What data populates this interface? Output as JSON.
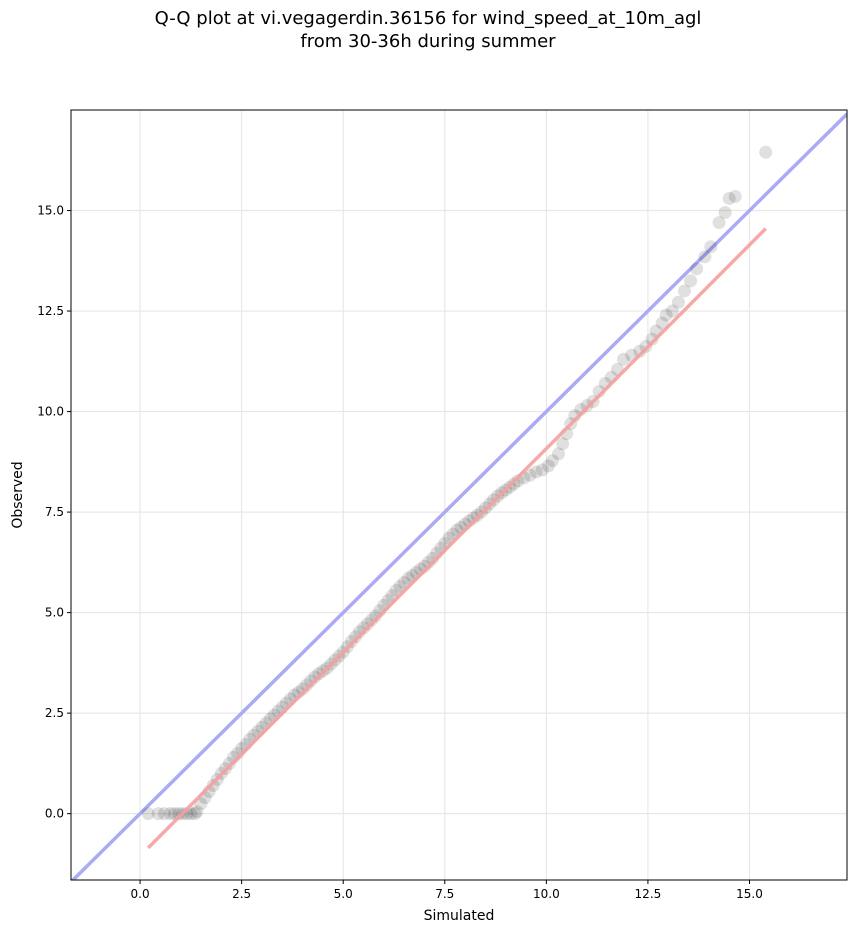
{
  "chart_data": {
    "type": "scatter",
    "title_line1": "Q-Q plot at vi.vegagerdin.36156 for wind_speed_at_10m_agl",
    "title_line2": "from 30-36h during summer",
    "xlabel": "Simulated",
    "ylabel": "Observed",
    "xlim": [
      -1.7,
      17.4
    ],
    "ylim": [
      -1.65,
      17.5
    ],
    "xticks": [
      0.0,
      2.5,
      5.0,
      7.5,
      10.0,
      12.5,
      15.0
    ],
    "yticks": [
      0.0,
      2.5,
      5.0,
      7.5,
      10.0,
      12.5,
      15.0
    ],
    "xtick_labels": [
      "0.0",
      "2.5",
      "5.0",
      "7.5",
      "10.0",
      "12.5",
      "15.0"
    ],
    "ytick_labels": [
      "0.0",
      "2.5",
      "5.0",
      "7.5",
      "10.0",
      "12.5",
      "15.0"
    ],
    "grid": true,
    "identity_line": {
      "color": "#aaaaf5",
      "x": [
        -1.7,
        17.4
      ],
      "y": [
        -1.7,
        17.4
      ]
    },
    "fit_line": {
      "color": "#f5a0a0",
      "x": [
        0.2,
        15.4
      ],
      "y": [
        -0.85,
        14.55
      ]
    },
    "point_color": "#000000",
    "points": [
      [
        0.2,
        0.0
      ],
      [
        0.45,
        0.0
      ],
      [
        0.6,
        0.0
      ],
      [
        0.75,
        0.0
      ],
      [
        0.85,
        0.0
      ],
      [
        0.95,
        0.0
      ],
      [
        1.05,
        0.0
      ],
      [
        1.15,
        0.0
      ],
      [
        1.25,
        0.0
      ],
      [
        1.35,
        0.0
      ],
      [
        1.4,
        0.05
      ],
      [
        1.5,
        0.25
      ],
      [
        1.6,
        0.4
      ],
      [
        1.7,
        0.55
      ],
      [
        1.8,
        0.7
      ],
      [
        1.9,
        0.85
      ],
      [
        2.0,
        1.0
      ],
      [
        2.1,
        1.12
      ],
      [
        2.2,
        1.25
      ],
      [
        2.3,
        1.4
      ],
      [
        2.4,
        1.5
      ],
      [
        2.5,
        1.62
      ],
      [
        2.6,
        1.72
      ],
      [
        2.7,
        1.85
      ],
      [
        2.8,
        1.95
      ],
      [
        2.9,
        2.05
      ],
      [
        3.0,
        2.15
      ],
      [
        3.1,
        2.25
      ],
      [
        3.2,
        2.35
      ],
      [
        3.3,
        2.45
      ],
      [
        3.4,
        2.55
      ],
      [
        3.5,
        2.65
      ],
      [
        3.6,
        2.75
      ],
      [
        3.7,
        2.85
      ],
      [
        3.8,
        2.95
      ],
      [
        3.9,
        3.02
      ],
      [
        4.0,
        3.1
      ],
      [
        4.1,
        3.2
      ],
      [
        4.2,
        3.3
      ],
      [
        4.3,
        3.4
      ],
      [
        4.4,
        3.48
      ],
      [
        4.5,
        3.55
      ],
      [
        4.6,
        3.62
      ],
      [
        4.7,
        3.72
      ],
      [
        4.8,
        3.82
      ],
      [
        4.9,
        3.92
      ],
      [
        5.0,
        4.02
      ],
      [
        5.1,
        4.15
      ],
      [
        5.2,
        4.28
      ],
      [
        5.3,
        4.4
      ],
      [
        5.4,
        4.52
      ],
      [
        5.5,
        4.62
      ],
      [
        5.6,
        4.72
      ],
      [
        5.7,
        4.82
      ],
      [
        5.8,
        4.92
      ],
      [
        5.9,
        5.05
      ],
      [
        6.0,
        5.18
      ],
      [
        6.1,
        5.3
      ],
      [
        6.2,
        5.42
      ],
      [
        6.3,
        5.55
      ],
      [
        6.4,
        5.65
      ],
      [
        6.5,
        5.75
      ],
      [
        6.6,
        5.85
      ],
      [
        6.7,
        5.92
      ],
      [
        6.8,
        6.0
      ],
      [
        6.9,
        6.08
      ],
      [
        7.0,
        6.15
      ],
      [
        7.1,
        6.25
      ],
      [
        7.2,
        6.35
      ],
      [
        7.3,
        6.48
      ],
      [
        7.4,
        6.6
      ],
      [
        7.5,
        6.72
      ],
      [
        7.6,
        6.85
      ],
      [
        7.7,
        6.95
      ],
      [
        7.8,
        7.05
      ],
      [
        7.9,
        7.12
      ],
      [
        8.0,
        7.2
      ],
      [
        8.1,
        7.28
      ],
      [
        8.2,
        7.35
      ],
      [
        8.3,
        7.42
      ],
      [
        8.4,
        7.5
      ],
      [
        8.5,
        7.6
      ],
      [
        8.6,
        7.7
      ],
      [
        8.7,
        7.8
      ],
      [
        8.8,
        7.9
      ],
      [
        8.9,
        7.98
      ],
      [
        9.0,
        8.05
      ],
      [
        9.1,
        8.12
      ],
      [
        9.2,
        8.2
      ],
      [
        9.3,
        8.28
      ],
      [
        9.45,
        8.35
      ],
      [
        9.6,
        8.42
      ],
      [
        9.75,
        8.5
      ],
      [
        9.9,
        8.55
      ],
      [
        10.05,
        8.65
      ],
      [
        10.15,
        8.78
      ],
      [
        10.3,
        8.95
      ],
      [
        10.4,
        9.2
      ],
      [
        10.5,
        9.45
      ],
      [
        10.6,
        9.7
      ],
      [
        10.7,
        9.9
      ],
      [
        10.85,
        10.05
      ],
      [
        11.0,
        10.15
      ],
      [
        11.15,
        10.25
      ],
      [
        11.3,
        10.5
      ],
      [
        11.45,
        10.7
      ],
      [
        11.6,
        10.85
      ],
      [
        11.75,
        11.05
      ],
      [
        11.9,
        11.3
      ],
      [
        12.1,
        11.4
      ],
      [
        12.3,
        11.5
      ],
      [
        12.45,
        11.62
      ],
      [
        12.6,
        11.8
      ],
      [
        12.7,
        12.0
      ],
      [
        12.85,
        12.2
      ],
      [
        12.95,
        12.4
      ],
      [
        13.1,
        12.5
      ],
      [
        13.25,
        12.72
      ],
      [
        13.4,
        13.0
      ],
      [
        13.55,
        13.25
      ],
      [
        13.7,
        13.55
      ],
      [
        13.9,
        13.85
      ],
      [
        14.05,
        14.1
      ],
      [
        14.25,
        14.7
      ],
      [
        14.4,
        14.95
      ],
      [
        14.5,
        15.3
      ],
      [
        14.65,
        15.35
      ],
      [
        15.4,
        16.45
      ]
    ]
  }
}
